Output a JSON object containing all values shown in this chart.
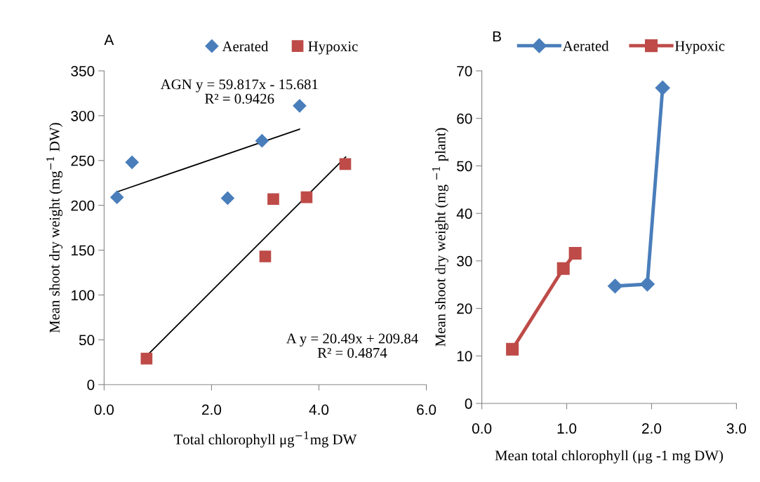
{
  "chart_data": [
    {
      "type": "scatter",
      "title": "A",
      "xlabel": "Total chlorophyll μg$^{−1}$mg DW",
      "ylabel": "Mean shoot dry weight (mg$^{−1}$ DW)",
      "xlim": [
        0,
        6
      ],
      "xticks": [
        {
          "value": 0,
          "label": "0.0"
        },
        {
          "value": 2,
          "label": "2.0"
        },
        {
          "value": 4,
          "label": "4.0"
        },
        {
          "value": 6,
          "label": "6.0"
        }
      ],
      "ylim": [
        0,
        350
      ],
      "yticks": [
        0,
        50,
        100,
        150,
        200,
        250,
        300,
        350
      ],
      "grid": false,
      "legend": "top",
      "series": [
        {
          "name": "Aerated",
          "color": "#4a7ebb",
          "marker": "diamond",
          "x": [
            0.24,
            0.52,
            2.3,
            2.94,
            3.64
          ],
          "values": [
            209,
            248,
            208,
            272,
            311
          ]
        },
        {
          "name": "Hypoxic",
          "color": "#be4b48",
          "marker": "square",
          "x": [
            0.79,
            3.0,
            3.15,
            3.77,
            4.49
          ],
          "values": [
            29,
            143,
            207,
            209,
            246
          ]
        },
        {
          "type": "line",
          "color": "#000000",
          "marker": "none",
          "x": [
            0.24,
            3.64
          ],
          "values": [
            215,
            285
          ]
        },
        {
          "type": "line",
          "color": "#000000",
          "marker": "none",
          "x": [
            0.79,
            4.5
          ],
          "values": [
            32,
            254
          ]
        }
      ],
      "annotations": [
        "AGN y = 59.817x - 15.681\nR² = 0.9426",
        "A y = 20.49x + 209.84\nR² = 0.4874"
      ]
    },
    {
      "type": "line",
      "title": "B",
      "xlabel": "Mean total chlorophyll (μg -1 mg DW)",
      "ylabel": "Mean shoot dry weight (mg $^{−1}$ plant)",
      "xlim": [
        0,
        3
      ],
      "xticks": [
        {
          "value": 0,
          "label": "0.0"
        },
        {
          "value": 1,
          "label": "1.0"
        },
        {
          "value": 2,
          "label": "2.0"
        },
        {
          "value": 3,
          "label": "3.0"
        }
      ],
      "ylim": [
        0,
        70
      ],
      "yticks": [
        0,
        10,
        20,
        30,
        40,
        50,
        60,
        70
      ],
      "grid": false,
      "legend": "top",
      "series": [
        {
          "name": "Aerated",
          "color": "#4a7ebb",
          "marker": "diamond",
          "x": [
            1.57,
            1.95,
            2.13
          ],
          "values": [
            24.7,
            25.1,
            66.4
          ]
        },
        {
          "name": "Hypoxic",
          "color": "#be4b48",
          "marker": "square",
          "x": [
            0.36,
            0.96,
            1.1
          ],
          "values": [
            11.4,
            28.4,
            31.6
          ]
        }
      ]
    }
  ]
}
